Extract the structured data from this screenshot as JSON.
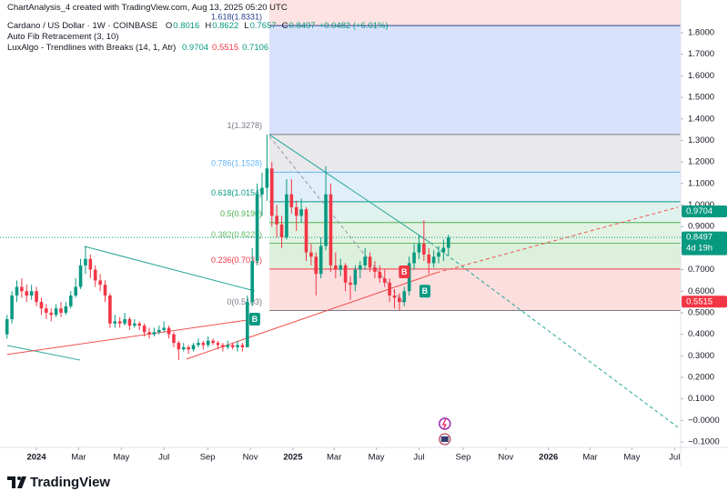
{
  "chart_data": {
    "type": "candlestick",
    "header": "ChartAnalysis_4 created with TradingView.com, Aug 13, 2025 05:20 UTC",
    "legend": {
      "symbol": "Cardano / US Dollar · 1W · COINBASE",
      "fields": [
        {
          "key": "O",
          "value": 0.8016
        },
        {
          "key": "H",
          "value": 0.8622
        },
        {
          "key": "L",
          "value": 0.7657
        },
        {
          "key": "C",
          "value": 0.8497
        }
      ],
      "change": "+0.0482 (+6.01%)"
    },
    "indicators": [
      {
        "name": "Auto Fib Retracement (3, 10)"
      },
      {
        "name": "LuxAlgo - Trendlines with Breaks (14, 1, Atr)",
        "values": [
          0.9704,
          0.5515,
          0.7106
        ],
        "colors": [
          "#089981",
          "#f23645",
          "#089981"
        ]
      }
    ],
    "up_color": "#089981",
    "down_color": "#f23645",
    "ohlc": [
      [
        0.4,
        0.49,
        0.38,
        0.47
      ],
      [
        0.47,
        0.6,
        0.45,
        0.58
      ],
      [
        0.58,
        0.65,
        0.55,
        0.62
      ],
      [
        0.62,
        0.66,
        0.57,
        0.6
      ],
      [
        0.6,
        0.63,
        0.55,
        0.58
      ],
      [
        0.58,
        0.63,
        0.56,
        0.6
      ],
      [
        0.6,
        0.62,
        0.53,
        0.55
      ],
      [
        0.55,
        0.57,
        0.49,
        0.52
      ],
      [
        0.52,
        0.54,
        0.47,
        0.5
      ],
      [
        0.5,
        0.52,
        0.46,
        0.49
      ],
      [
        0.49,
        0.54,
        0.48,
        0.52
      ],
      [
        0.52,
        0.55,
        0.48,
        0.5
      ],
      [
        0.5,
        0.55,
        0.49,
        0.53
      ],
      [
        0.53,
        0.6,
        0.52,
        0.58
      ],
      [
        0.58,
        0.66,
        0.57,
        0.62
      ],
      [
        0.62,
        0.75,
        0.61,
        0.72
      ],
      [
        0.72,
        0.81,
        0.68,
        0.75
      ],
      [
        0.75,
        0.77,
        0.66,
        0.7
      ],
      [
        0.7,
        0.72,
        0.62,
        0.65
      ],
      [
        0.65,
        0.68,
        0.6,
        0.63
      ],
      [
        0.63,
        0.65,
        0.55,
        0.58
      ],
      [
        0.58,
        0.59,
        0.43,
        0.45
      ],
      [
        0.45,
        0.49,
        0.43,
        0.46
      ],
      [
        0.46,
        0.48,
        0.43,
        0.45
      ],
      [
        0.45,
        0.5,
        0.44,
        0.47
      ],
      [
        0.47,
        0.48,
        0.42,
        0.44
      ],
      [
        0.44,
        0.47,
        0.43,
        0.45
      ],
      [
        0.45,
        0.46,
        0.42,
        0.44
      ],
      [
        0.44,
        0.45,
        0.39,
        0.41
      ],
      [
        0.41,
        0.43,
        0.38,
        0.4
      ],
      [
        0.4,
        0.43,
        0.39,
        0.41
      ],
      [
        0.41,
        0.44,
        0.4,
        0.42
      ],
      [
        0.42,
        0.46,
        0.41,
        0.43
      ],
      [
        0.43,
        0.44,
        0.38,
        0.4
      ],
      [
        0.4,
        0.41,
        0.34,
        0.36
      ],
      [
        0.36,
        0.37,
        0.28,
        0.33
      ],
      [
        0.33,
        0.36,
        0.32,
        0.34
      ],
      [
        0.34,
        0.35,
        0.31,
        0.33
      ],
      [
        0.33,
        0.36,
        0.32,
        0.35
      ],
      [
        0.35,
        0.38,
        0.34,
        0.36
      ],
      [
        0.36,
        0.37,
        0.33,
        0.35
      ],
      [
        0.35,
        0.39,
        0.34,
        0.37
      ],
      [
        0.37,
        0.38,
        0.35,
        0.36
      ],
      [
        0.36,
        0.37,
        0.33,
        0.35
      ],
      [
        0.35,
        0.36,
        0.32,
        0.34
      ],
      [
        0.34,
        0.37,
        0.33,
        0.35
      ],
      [
        0.35,
        0.36,
        0.33,
        0.34
      ],
      [
        0.34,
        0.37,
        0.32,
        0.35
      ],
      [
        0.35,
        0.36,
        0.32,
        0.34
      ],
      [
        0.34,
        0.58,
        0.34,
        0.55
      ],
      [
        0.55,
        0.8,
        0.53,
        0.74
      ],
      [
        0.74,
        1.1,
        0.72,
        1.05
      ],
      [
        1.05,
        1.15,
        0.95,
        1.08
      ],
      [
        1.08,
        1.3278,
        1.02,
        1.17
      ],
      [
        1.17,
        1.2,
        0.9,
        0.95
      ],
      [
        0.95,
        1.0,
        0.85,
        0.91
      ],
      [
        0.91,
        0.95,
        0.8,
        0.85
      ],
      [
        0.85,
        1.12,
        0.84,
        1.05
      ],
      [
        1.05,
        1.12,
        0.96,
        0.99
      ],
      [
        0.99,
        1.02,
        0.88,
        0.95
      ],
      [
        0.95,
        1.03,
        0.92,
        0.98
      ],
      [
        0.98,
        0.99,
        0.74,
        0.78
      ],
      [
        0.78,
        0.82,
        0.72,
        0.76
      ],
      [
        0.76,
        0.78,
        0.58,
        0.68
      ],
      [
        0.68,
        0.85,
        0.66,
        0.81
      ],
      [
        0.81,
        1.18,
        0.79,
        1.05
      ],
      [
        1.05,
        1.1,
        0.69,
        0.72
      ],
      [
        0.72,
        0.78,
        0.66,
        0.7
      ],
      [
        0.7,
        0.75,
        0.67,
        0.72
      ],
      [
        0.72,
        0.73,
        0.6,
        0.64
      ],
      [
        0.64,
        0.67,
        0.56,
        0.63
      ],
      [
        0.63,
        0.72,
        0.6,
        0.7
      ],
      [
        0.7,
        0.74,
        0.66,
        0.72
      ],
      [
        0.72,
        0.8,
        0.7,
        0.76
      ],
      [
        0.76,
        0.78,
        0.69,
        0.71
      ],
      [
        0.71,
        0.74,
        0.66,
        0.69
      ],
      [
        0.69,
        0.72,
        0.64,
        0.66
      ],
      [
        0.66,
        0.7,
        0.62,
        0.64
      ],
      [
        0.64,
        0.66,
        0.55,
        0.58
      ],
      [
        0.58,
        0.61,
        0.52,
        0.57
      ],
      [
        0.57,
        0.59,
        0.51,
        0.55
      ],
      [
        0.55,
        0.62,
        0.53,
        0.6
      ],
      [
        0.6,
        0.76,
        0.58,
        0.73
      ],
      [
        0.73,
        0.82,
        0.7,
        0.78
      ],
      [
        0.78,
        0.86,
        0.75,
        0.82
      ],
      [
        0.82,
        0.93,
        0.74,
        0.77
      ],
      [
        0.77,
        0.8,
        0.68,
        0.73
      ],
      [
        0.73,
        0.79,
        0.71,
        0.76
      ],
      [
        0.76,
        0.81,
        0.73,
        0.78
      ],
      [
        0.78,
        0.84,
        0.74,
        0.8016
      ],
      [
        0.8016,
        0.8622,
        0.7657,
        0.8497
      ]
    ],
    "xlim": [
      -1.43,
      137.35
    ],
    "xticks": [
      {
        "value": 6,
        "label": "2024"
      },
      {
        "value": 14.6,
        "label": "Mar"
      },
      {
        "value": 23.3,
        "label": "May"
      },
      {
        "value": 32,
        "label": "Jul"
      },
      {
        "value": 40.9,
        "label": "Sep"
      },
      {
        "value": 49.6,
        "label": "Nov"
      },
      {
        "value": 58.3,
        "label": "2025"
      },
      {
        "value": 66.7,
        "label": "Mar"
      },
      {
        "value": 75.3,
        "label": "May"
      },
      {
        "value": 84,
        "label": "Jul"
      },
      {
        "value": 93,
        "label": "Sep"
      },
      {
        "value": 101.7,
        "label": "Nov"
      },
      {
        "value": 110.4,
        "label": "2026"
      },
      {
        "value": 118.9,
        "label": "Mar"
      },
      {
        "value": 127.4,
        "label": "May"
      },
      {
        "value": 136.1,
        "label": "Jul"
      }
    ],
    "ylim": [
      -0.125,
      1.952
    ],
    "yticks": [
      {
        "value": 1.8,
        "label": "1.8000"
      },
      {
        "value": 1.7,
        "label": "1.7000"
      },
      {
        "value": 1.6,
        "label": "1.6000"
      },
      {
        "value": 1.5,
        "label": "1.5000"
      },
      {
        "value": 1.4,
        "label": "1.4000"
      },
      {
        "value": 1.3,
        "label": "1.3000"
      },
      {
        "value": 1.2,
        "label": "1.2000"
      },
      {
        "value": 1.1,
        "label": "1.1000"
      },
      {
        "value": 1.0,
        "label": "1.0000"
      },
      {
        "value": 0.9,
        "label": "0.9000"
      },
      {
        "value": 0.8,
        "label": "0.8000"
      },
      {
        "value": 0.7,
        "label": "0.7000"
      },
      {
        "value": 0.6,
        "label": "0.6000"
      },
      {
        "value": 0.5,
        "label": "0.5000"
      },
      {
        "value": 0.4,
        "label": "0.4000"
      },
      {
        "value": 0.3,
        "label": "0.3000"
      },
      {
        "value": 0.2,
        "label": "0.2000"
      },
      {
        "value": 0.1,
        "label": "0.1000"
      },
      {
        "value": 0,
        "label": "−0.0000"
      },
      {
        "value": -0.1,
        "label": "−0.1000"
      }
    ],
    "grid": false,
    "fib": {
      "start_x": 53.5,
      "top_fill": "#fde3e3",
      "levels": [
        {
          "label": "1.618(1.8331)",
          "value": 1.8331,
          "color": "#2a3f8f",
          "fill": "#d9e2fc"
        },
        {
          "label": "1(1.3278)",
          "value": 1.3278,
          "color": "#787b86",
          "fill": "#e9e9ec"
        },
        {
          "label": "0.786(1.1528)",
          "value": 1.1528,
          "color": "#64b5f6",
          "fill": "#e1effb"
        },
        {
          "label": "0.618(1.0154)",
          "value": 1.0154,
          "color": "#089981",
          "fill": "#dff2ee"
        },
        {
          "label": "0.5(0.9190)",
          "value": 0.919,
          "color": "#4caf50",
          "fill": "#e3f3e3"
        },
        {
          "label": "0.382(0.8225)",
          "value": 0.8225,
          "color": "#66bb6a",
          "fill": "#dcf0dc"
        },
        {
          "label": "0.236(0.7031)",
          "value": 0.7031,
          "color": "#f23645",
          "fill": "#fcdede"
        },
        {
          "label": "0(0.5103)",
          "value": 0.5103,
          "color": "#787b86"
        }
      ]
    },
    "trendlines": [
      {
        "x": [
          15.8,
          50.5
        ],
        "y": [
          0.808,
          0.601
        ],
        "color": "#26a69a",
        "dash": false
      },
      {
        "x": [
          53.5,
          86.3
        ],
        "y": [
          1.327,
          0.825
        ],
        "color": "#26a69a",
        "dash": false
      },
      {
        "x": [
          86.3,
          136.8
        ],
        "y": [
          0.825,
          -0.032
        ],
        "color": "#26a69a",
        "dash": true
      },
      {
        "x": [
          0.06,
          14.9
        ],
        "y": [
          0.348,
          0.28
        ],
        "color": "#26a69a",
        "dash": false
      },
      {
        "x": [
          0,
          49
        ],
        "y": [
          0.306,
          0.466
        ],
        "color": "#ef5350",
        "dash": false
      },
      {
        "x": [
          36.6,
          87.6
        ],
        "y": [
          0.285,
          0.686
        ],
        "color": "#ef5350",
        "dash": false
      },
      {
        "x": [
          87.6,
          136.8
        ],
        "y": [
          0.686,
          0.99
        ],
        "color": "#ef5350",
        "dash": true
      },
      {
        "x": [
          53.5,
          81.1
        ],
        "y": [
          1.319,
          0.538
        ],
        "color": "#9598a1",
        "dash": true
      }
    ],
    "break_labels": [
      {
        "text": "B",
        "x": 50.5,
        "y": 0.47,
        "color": "#089981"
      },
      {
        "text": "B",
        "x": 81,
        "y": 0.69,
        "color": "#f23645"
      },
      {
        "text": "B",
        "x": 85.2,
        "y": 0.6,
        "color": "#089981"
      }
    ],
    "price_tags": [
      {
        "value": 0.9704,
        "color": "#089981"
      },
      {
        "value": 0.8497,
        "color": "#089981",
        "sub": "4d 19h"
      },
      {
        "value": 0.5515,
        "color": "#f23645"
      }
    ],
    "brand": "TradingView"
  }
}
